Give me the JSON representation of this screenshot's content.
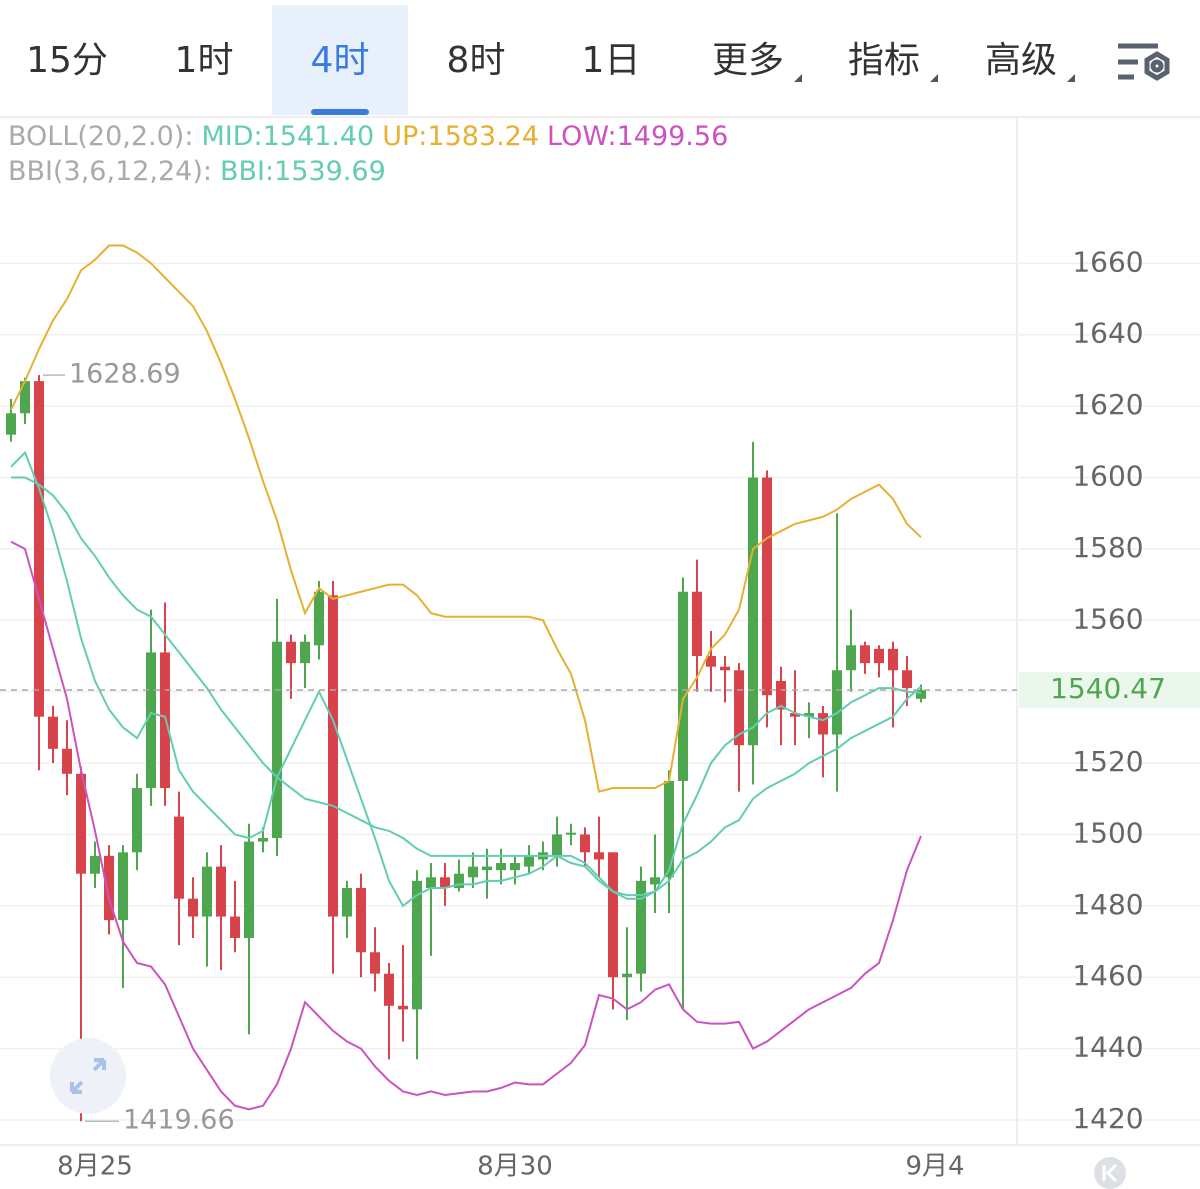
{
  "tabs": [
    {
      "label": "15分"
    },
    {
      "label": "1时"
    },
    {
      "label": "4时",
      "active": true
    },
    {
      "label": "8时"
    },
    {
      "label": "1日"
    },
    {
      "label": "更多",
      "dropdown": true
    },
    {
      "label": "指标",
      "dropdown": true
    },
    {
      "label": "高级",
      "dropdown": true
    }
  ],
  "chart_data": {
    "type": "candlestick",
    "indicator_labels": [
      "BOLL(20,2.0):",
      "BBI(3,6,12,24):"
    ],
    "categories": [
      null,
      null,
      null,
      null,
      null,
      null,
      "8月25",
      null,
      null,
      null,
      null,
      null,
      null,
      null,
      null,
      null,
      null,
      null,
      null,
      null,
      null,
      null,
      null,
      null,
      null,
      null,
      null,
      null,
      null,
      null,
      null,
      null,
      null,
      null,
      null,
      null,
      "8月30",
      null,
      null,
      null,
      null,
      null,
      null,
      null,
      null,
      null,
      null,
      null,
      null,
      null,
      null,
      null,
      null,
      null,
      null,
      null,
      null,
      null,
      null,
      null,
      null,
      null,
      null,
      null,
      null,
      null,
      "9月4"
    ],
    "candles": {
      "up_color": "#4ea64f",
      "down_color": "#d7434b",
      "open": [
        1612,
        1618,
        1627,
        1533,
        1524,
        1517,
        1489,
        1494,
        1476,
        1495,
        1513,
        1551,
        1505,
        1482,
        1477,
        1491,
        1477,
        1471,
        1498,
        1499,
        1554,
        1548,
        1553,
        1567,
        1477,
        1485,
        1467,
        1461,
        1452,
        1451,
        1485,
        1488,
        1485,
        1488,
        1490,
        1490,
        1490,
        1491,
        1493,
        1494,
        1500,
        1500,
        1495,
        1495,
        1460,
        1461,
        1486,
        1488,
        1515,
        1568,
        1550,
        1547,
        1546,
        1525,
        1600,
        1543,
        1534,
        1533,
        1534,
        1528,
        1546,
        1553,
        1552,
        1552,
        1546,
        1538,
        null
      ],
      "high": [
        1622,
        1628,
        1628.69,
        1536,
        1532,
        1519,
        1498,
        1497,
        1497,
        1517,
        1563,
        1565,
        1512,
        1488,
        1495,
        1497,
        1487,
        1503,
        1502,
        1566,
        1556,
        1556,
        1571,
        1571,
        1487,
        1489,
        1474,
        1464,
        1469,
        1490,
        1492,
        1492,
        1493,
        1495,
        1496,
        1496,
        1494,
        1497,
        1498,
        1505,
        1503,
        1502,
        1505,
        1495,
        1474,
        1491,
        1500,
        1518,
        1572,
        1577,
        1557,
        1550,
        1548,
        1610,
        1602,
        1547,
        1546,
        1537,
        1536,
        1590,
        1563,
        1554,
        1553,
        1554,
        1550,
        1542,
        null
      ],
      "low": [
        1610,
        1615,
        1518,
        1520,
        1511,
        1419.66,
        1485,
        1472,
        1457,
        1490,
        1508,
        1508,
        1469,
        1471,
        1463,
        1462,
        1467,
        1444,
        1495,
        1494,
        1538,
        1541,
        1549,
        1461,
        1471,
        1460,
        1456,
        1437,
        1442,
        1437,
        1466,
        1480,
        1484,
        1485,
        1482,
        1486,
        1486,
        1489,
        1490,
        1491,
        1497,
        1491,
        1488,
        1451,
        1448,
        1456,
        1478,
        1478,
        1451,
        1540,
        1540,
        1537,
        1512,
        1514,
        1530,
        1525,
        1525,
        1527,
        1516,
        1512,
        1540,
        1545,
        1544,
        1530,
        1536,
        1537,
        null
      ],
      "close": [
        1618,
        1627,
        1533,
        1524,
        1517,
        1489,
        1494,
        1476,
        1495,
        1513,
        1551,
        1513,
        1482,
        1477,
        1491,
        1477,
        1471,
        1498,
        1499,
        1554,
        1548,
        1554,
        1568,
        1477,
        1485,
        1467,
        1461,
        1452,
        1451,
        1487,
        1488,
        1485,
        1489,
        1491,
        1491,
        1492,
        1492,
        1494,
        1495,
        1500,
        1500.5,
        1495,
        1493,
        1460,
        1461,
        1487,
        1488,
        1515,
        1568,
        1550,
        1547,
        1546,
        1525,
        1600,
        1539,
        1535,
        1533,
        1534,
        1528,
        1546,
        1553,
        1548,
        1548,
        1546,
        1541,
        1540.47,
        null
      ]
    },
    "series": [
      {
        "legend": "MID:1541.40",
        "group": 0,
        "color": "#62cdb2",
        "values": [
          1600,
          1600,
          1598,
          1595,
          1590,
          1583,
          1578,
          1572,
          1567,
          1563,
          1561,
          1556,
          1551,
          1546,
          1541,
          1535,
          1530,
          1525,
          1520,
          1516,
          1513,
          1510,
          1509,
          1508,
          1506,
          1504,
          1502,
          1501,
          1499,
          1496,
          1494,
          1494,
          1494,
          1494,
          1494,
          1494,
          1494,
          1494,
          1494,
          1494,
          1492,
          1491,
          1487,
          1484,
          1483,
          1483,
          1484,
          1487,
          1493,
          1495,
          1498,
          1502,
          1504,
          1510,
          1513,
          1515,
          1517,
          1520,
          1522,
          1524,
          1527,
          1529,
          1531,
          1533,
          1538,
          1541.4,
          null
        ]
      },
      {
        "legend": "UP:1583.24",
        "group": 0,
        "color": "#e6b030",
        "values": [
          1619,
          1627,
          1636,
          1644,
          1650,
          1658,
          1661,
          1665,
          1665,
          1663,
          1660,
          1656,
          1652,
          1648,
          1641,
          1632,
          1622,
          1611,
          1599,
          1588,
          1574,
          1562,
          1569,
          1566,
          1567,
          1568,
          1569,
          1570,
          1570,
          1567,
          1562,
          1561,
          1561,
          1561,
          1561,
          1561,
          1561,
          1561,
          1560,
          1552,
          1545,
          1532,
          1512,
          1513,
          1513,
          1513,
          1513,
          1515,
          1538,
          1544,
          1552,
          1556,
          1563,
          1580,
          1583,
          1585,
          1587,
          1588,
          1589,
          1591,
          1594,
          1596,
          1598,
          1594,
          1587,
          1583.24,
          null
        ]
      },
      {
        "legend": "LOW:1499.56",
        "group": 0,
        "color": "#cc52c0",
        "values": [
          1582,
          1580,
          1566,
          1552,
          1538,
          1518,
          1501,
          1482,
          1470,
          1464,
          1463,
          1458,
          1449,
          1440,
          1434,
          1428,
          1424,
          1423,
          1424,
          1430,
          1440,
          1453,
          1449,
          1445,
          1442,
          1440,
          1435,
          1431,
          1428,
          1427,
          1428,
          1427,
          1427.5,
          1428,
          1428,
          1429,
          1430.5,
          1430,
          1430,
          1433,
          1436,
          1441,
          1455,
          1454,
          1451,
          1453,
          1456.5,
          1458,
          1451,
          1447.5,
          1447,
          1447,
          1447.5,
          1440,
          1442,
          1445,
          1448,
          1451,
          1453,
          1455,
          1457,
          1461,
          1464,
          1476,
          1490,
          1499.56,
          null
        ]
      },
      {
        "legend": "BBI:1539.69",
        "group": 1,
        "color": "#62cdb2",
        "values": [
          1603,
          1607,
          1597,
          1585,
          1571,
          1555,
          1543,
          1535,
          1530,
          1527,
          1534,
          1533,
          1518,
          1512,
          1508,
          1504,
          1500,
          1499,
          1501,
          1516,
          1524,
          1532,
          1540,
          1532,
          1521,
          1510,
          1499,
          1487,
          1480,
          1483,
          1485,
          1485,
          1486,
          1486,
          1487,
          1487,
          1488,
          1489,
          1491,
          1494,
          1494,
          1492,
          1488,
          1484,
          1482,
          1482,
          1484,
          1490,
          1503,
          1511,
          1520,
          1525,
          1528,
          1530,
          1534,
          1536,
          1534,
          1533,
          1532,
          1534,
          1537,
          1539,
          1541,
          1541,
          1540,
          1539.69,
          null
        ]
      }
    ],
    "ylim": [
      1413,
      1701
    ],
    "yticks": [
      1420,
      1440,
      1460,
      1480,
      1500,
      1520,
      1540,
      1560,
      1580,
      1600,
      1620,
      1640,
      1660
    ],
    "grid": true
  }
}
